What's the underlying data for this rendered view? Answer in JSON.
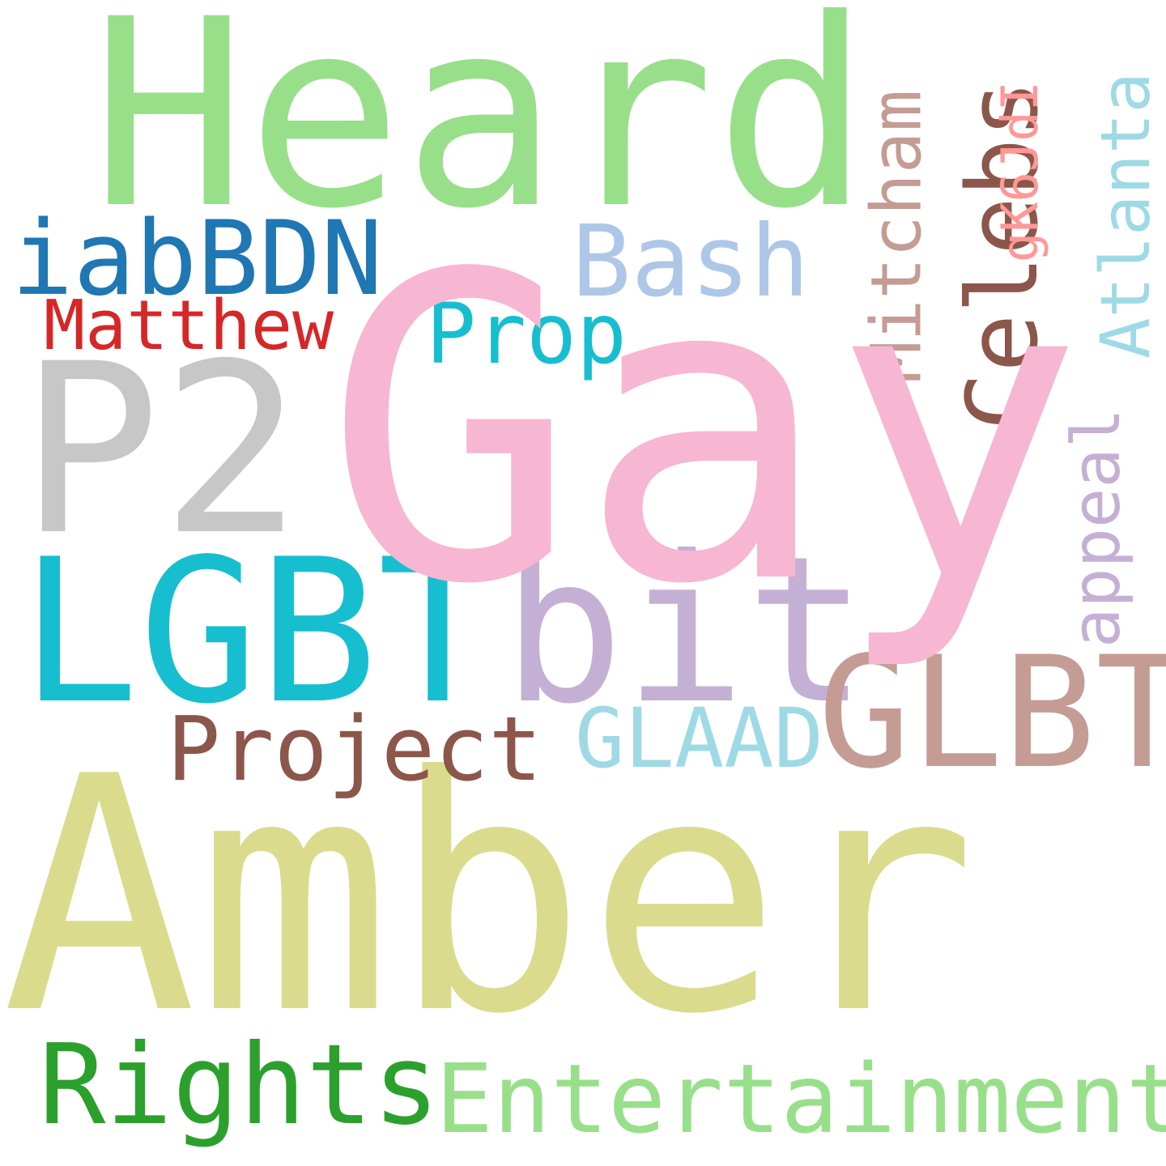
{
  "words": {
    "heard": {
      "text": "Heard",
      "color": "#98df8a"
    },
    "gay": {
      "text": "Gay",
      "color": "#f7b6d2"
    },
    "amber": {
      "text": "Amber",
      "color": "#dbdb8d"
    },
    "p2": {
      "text": "P2",
      "color": "#c7c7c7"
    },
    "lgbt": {
      "text": "LGBT",
      "color": "#17becf"
    },
    "bit": {
      "text": "bit",
      "color": "#c5b0d5"
    },
    "glbt": {
      "text": "GLBT",
      "color": "#c49c94"
    },
    "iabbdn": {
      "text": "iabBDN",
      "color": "#1f77b4"
    },
    "matthew": {
      "text": "Matthew",
      "color": "#d62728"
    },
    "bash": {
      "text": "Bash",
      "color": "#aec7e8"
    },
    "prop": {
      "text": "Prop",
      "color": "#17becf"
    },
    "celebs": {
      "text": "Celebs",
      "color": "#8c564b"
    },
    "mitcham": {
      "text": "Mitcham",
      "color": "#c49c94"
    },
    "gk6jdi": {
      "text": "gK6JdI",
      "color": "#ff9896"
    },
    "atlanta": {
      "text": "Atlanta",
      "color": "#9edae5"
    },
    "appeal": {
      "text": "appeal",
      "color": "#c5b0d5"
    },
    "project": {
      "text": "Project",
      "color": "#8c564b"
    },
    "glaad": {
      "text": "GLAAD",
      "color": "#9edae5"
    },
    "rights": {
      "text": "Rights",
      "color": "#2ca02c"
    },
    "entertainment": {
      "text": "Entertainment",
      "color": "#98df8a"
    }
  }
}
